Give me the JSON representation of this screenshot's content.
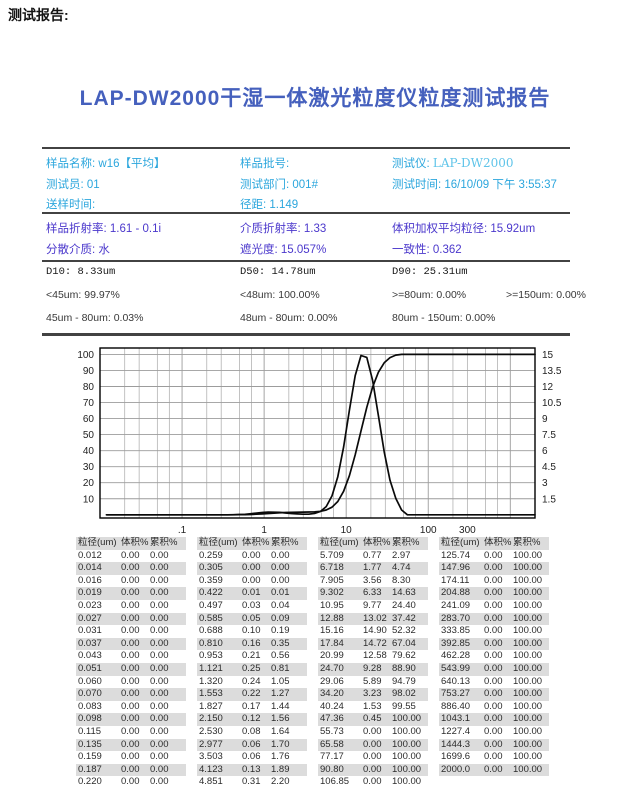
{
  "page": {
    "corner_label": "测试报告:",
    "title": "LAP-DW2000干湿一体激光粒度仪粒度测试报告"
  },
  "info_primary": {
    "sample_name": "样品名称: w16【平均】",
    "batch": "样品批号:",
    "instrument_label": "测试仪:",
    "instrument_value": "LAP-DW2000",
    "operator": "测试员: 01",
    "department": "测试部门: 001#",
    "test_time": "测试时间: 16/10/09 下午 3:55:37",
    "delivery_time": "送样时间:",
    "span_ratio": "径距: 1.149"
  },
  "info_optical": {
    "sample_ri": "样品折射率: 1.61 - 0.1i",
    "medium_ri": "介质折射率: 1.33",
    "vol_weighted_mean": "体积加权平均粒径: 15.92um",
    "dispersant": "分散介质: 水",
    "obscuration": "遮光度: 15.057%",
    "uniformity": "一致性: 0.362"
  },
  "d_values": {
    "d10": "D10: 8.33um",
    "d50": "D50: 14.78um",
    "d90": "D90: 25.31um"
  },
  "fractions": {
    "lt45": "<45um: 99.97%",
    "lt48": "<48um: 100.00%",
    "ge80": ">=80um: 0.00%",
    "ge150": ">=150um: 0.00%",
    "r45_80": "45um - 80um: 0.03%",
    "r48_80": "48um - 80um: 0.00%",
    "r80_150": "80um - 150um: 0.00%"
  },
  "chart_data": {
    "type": "line",
    "x_axis": {
      "scale": "log",
      "min": 0.01,
      "max": 2000,
      "tick_labels": [
        ".1",
        "1",
        "10",
        "100",
        "300"
      ],
      "tick_values": [
        0.1,
        1,
        10,
        100,
        300
      ]
    },
    "y_left": {
      "min": -2,
      "max": 104,
      "ticks": [
        10,
        20,
        30,
        40,
        50,
        60,
        70,
        80,
        90,
        100
      ]
    },
    "y_right": {
      "min": -0.3,
      "max": 15.6,
      "ticks": [
        1.5,
        3,
        4.5,
        6,
        7.5,
        9,
        10.5,
        12,
        13.5,
        15
      ]
    },
    "grid": true,
    "x": [
      0.012,
      0.014,
      0.016,
      0.019,
      0.023,
      0.027,
      0.031,
      0.037,
      0.043,
      0.051,
      0.06,
      0.07,
      0.083,
      0.098,
      0.115,
      0.135,
      0.159,
      0.187,
      0.22,
      0.259,
      0.305,
      0.359,
      0.422,
      0.497,
      0.585,
      0.688,
      0.81,
      0.953,
      1.121,
      1.32,
      1.553,
      1.827,
      2.15,
      2.53,
      2.977,
      3.503,
      4.123,
      4.851,
      5.709,
      6.718,
      7.905,
      9.302,
      10.95,
      12.88,
      15.16,
      17.84,
      20.99,
      24.7,
      29.06,
      34.2,
      40.24,
      47.36,
      55.73,
      65.58,
      77.17,
      90.8,
      106.85,
      125.74,
      147.96,
      174.11,
      204.88,
      241.09,
      283.7,
      333.85,
      392.85,
      462.28,
      543.99,
      640.13,
      753.27,
      886.4,
      1043.1,
      1227.4,
      1444.3,
      1699.6,
      2000.0
    ],
    "series": [
      {
        "name": "累积%",
        "axis": "left",
        "y": [
          0,
          0,
          0,
          0,
          0,
          0,
          0,
          0,
          0,
          0,
          0,
          0,
          0,
          0,
          0,
          0,
          0,
          0,
          0,
          0,
          0,
          0,
          0.01,
          0.04,
          0.09,
          0.19,
          0.35,
          0.56,
          0.81,
          1.05,
          1.27,
          1.44,
          1.56,
          1.64,
          1.7,
          1.76,
          1.89,
          2.2,
          2.97,
          4.74,
          8.3,
          14.63,
          24.4,
          37.42,
          52.32,
          67.04,
          79.62,
          88.9,
          94.79,
          98.02,
          99.55,
          100,
          100,
          100,
          100,
          100,
          100,
          100,
          100,
          100,
          100,
          100,
          100,
          100,
          100,
          100,
          100,
          100,
          100,
          100,
          100,
          100,
          100,
          100,
          100
        ]
      },
      {
        "name": "体积%",
        "axis": "right",
        "y": [
          0,
          0,
          0,
          0,
          0,
          0,
          0,
          0,
          0,
          0,
          0,
          0,
          0,
          0,
          0,
          0,
          0,
          0,
          0,
          0,
          0,
          0,
          0.01,
          0.03,
          0.05,
          0.1,
          0.16,
          0.21,
          0.25,
          0.24,
          0.22,
          0.17,
          0.12,
          0.08,
          0.06,
          0.06,
          0.13,
          0.31,
          0.77,
          1.77,
          3.56,
          6.33,
          9.77,
          13.02,
          14.9,
          14.72,
          12.58,
          9.28,
          5.89,
          3.23,
          1.53,
          0.45,
          0,
          0,
          0,
          0,
          0,
          0,
          0,
          0,
          0,
          0,
          0,
          0,
          0,
          0,
          0,
          0,
          0,
          0,
          0,
          0,
          0,
          0,
          0
        ]
      }
    ]
  },
  "table": {
    "headers": [
      "粒径(um)",
      "体积%",
      "累积%"
    ],
    "groups": [
      [
        [
          "0.012",
          "0.00",
          "0.00"
        ],
        [
          "0.014",
          "0.00",
          "0.00"
        ],
        [
          "0.016",
          "0.00",
          "0.00"
        ],
        [
          "0.019",
          "0.00",
          "0.00"
        ],
        [
          "0.023",
          "0.00",
          "0.00"
        ],
        [
          "0.027",
          "0.00",
          "0.00"
        ],
        [
          "0.031",
          "0.00",
          "0.00"
        ],
        [
          "0.037",
          "0.00",
          "0.00"
        ],
        [
          "0.043",
          "0.00",
          "0.00"
        ],
        [
          "0.051",
          "0.00",
          "0.00"
        ],
        [
          "0.060",
          "0.00",
          "0.00"
        ],
        [
          "0.070",
          "0.00",
          "0.00"
        ],
        [
          "0.083",
          "0.00",
          "0.00"
        ],
        [
          "0.098",
          "0.00",
          "0.00"
        ],
        [
          "0.115",
          "0.00",
          "0.00"
        ],
        [
          "0.135",
          "0.00",
          "0.00"
        ],
        [
          "0.159",
          "0.00",
          "0.00"
        ],
        [
          "0.187",
          "0.00",
          "0.00"
        ],
        [
          "0.220",
          "0.00",
          "0.00"
        ]
      ],
      [
        [
          "0.259",
          "0.00",
          "0.00"
        ],
        [
          "0.305",
          "0.00",
          "0.00"
        ],
        [
          "0.359",
          "0.00",
          "0.00"
        ],
        [
          "0.422",
          "0.01",
          "0.01"
        ],
        [
          "0.497",
          "0.03",
          "0.04"
        ],
        [
          "0.585",
          "0.05",
          "0.09"
        ],
        [
          "0.688",
          "0.10",
          "0.19"
        ],
        [
          "0.810",
          "0.16",
          "0.35"
        ],
        [
          "0.953",
          "0.21",
          "0.56"
        ],
        [
          "1.121",
          "0.25",
          "0.81"
        ],
        [
          "1.320",
          "0.24",
          "1.05"
        ],
        [
          "1.553",
          "0.22",
          "1.27"
        ],
        [
          "1.827",
          "0.17",
          "1.44"
        ],
        [
          "2.150",
          "0.12",
          "1.56"
        ],
        [
          "2.530",
          "0.08",
          "1.64"
        ],
        [
          "2.977",
          "0.06",
          "1.70"
        ],
        [
          "3.503",
          "0.06",
          "1.76"
        ],
        [
          "4.123",
          "0.13",
          "1.89"
        ],
        [
          "4.851",
          "0.31",
          "2.20"
        ]
      ],
      [
        [
          "5.709",
          "0.77",
          "2.97"
        ],
        [
          "6.718",
          "1.77",
          "4.74"
        ],
        [
          "7.905",
          "3.56",
          "8.30"
        ],
        [
          "9.302",
          "6.33",
          "14.63"
        ],
        [
          "10.95",
          "9.77",
          "24.40"
        ],
        [
          "12.88",
          "13.02",
          "37.42"
        ],
        [
          "15.16",
          "14.90",
          "52.32"
        ],
        [
          "17.84",
          "14.72",
          "67.04"
        ],
        [
          "20.99",
          "12.58",
          "79.62"
        ],
        [
          "24.70",
          "9.28",
          "88.90"
        ],
        [
          "29.06",
          "5.89",
          "94.79"
        ],
        [
          "34.20",
          "3.23",
          "98.02"
        ],
        [
          "40.24",
          "1.53",
          "99.55"
        ],
        [
          "47.36",
          "0.45",
          "100.00"
        ],
        [
          "55.73",
          "0.00",
          "100.00"
        ],
        [
          "65.58",
          "0.00",
          "100.00"
        ],
        [
          "77.17",
          "0.00",
          "100.00"
        ],
        [
          "90.80",
          "0.00",
          "100.00"
        ],
        [
          "106.85",
          "0.00",
          "100.00"
        ]
      ],
      [
        [
          "125.74",
          "0.00",
          "100.00"
        ],
        [
          "147.96",
          "0.00",
          "100.00"
        ],
        [
          "174.11",
          "0.00",
          "100.00"
        ],
        [
          "204.88",
          "0.00",
          "100.00"
        ],
        [
          "241.09",
          "0.00",
          "100.00"
        ],
        [
          "283.70",
          "0.00",
          "100.00"
        ],
        [
          "333.85",
          "0.00",
          "100.00"
        ],
        [
          "392.85",
          "0.00",
          "100.00"
        ],
        [
          "462.28",
          "0.00",
          "100.00"
        ],
        [
          "543.99",
          "0.00",
          "100.00"
        ],
        [
          "640.13",
          "0.00",
          "100.00"
        ],
        [
          "753.27",
          "0.00",
          "100.00"
        ],
        [
          "886.40",
          "0.00",
          "100.00"
        ],
        [
          "1043.1",
          "0.00",
          "100.00"
        ],
        [
          "1227.4",
          "0.00",
          "100.00"
        ],
        [
          "1444.3",
          "0.00",
          "100.00"
        ],
        [
          "1699.6",
          "0.00",
          "100.00"
        ],
        [
          "2000.0",
          "0.00",
          "100.00"
        ]
      ]
    ]
  }
}
